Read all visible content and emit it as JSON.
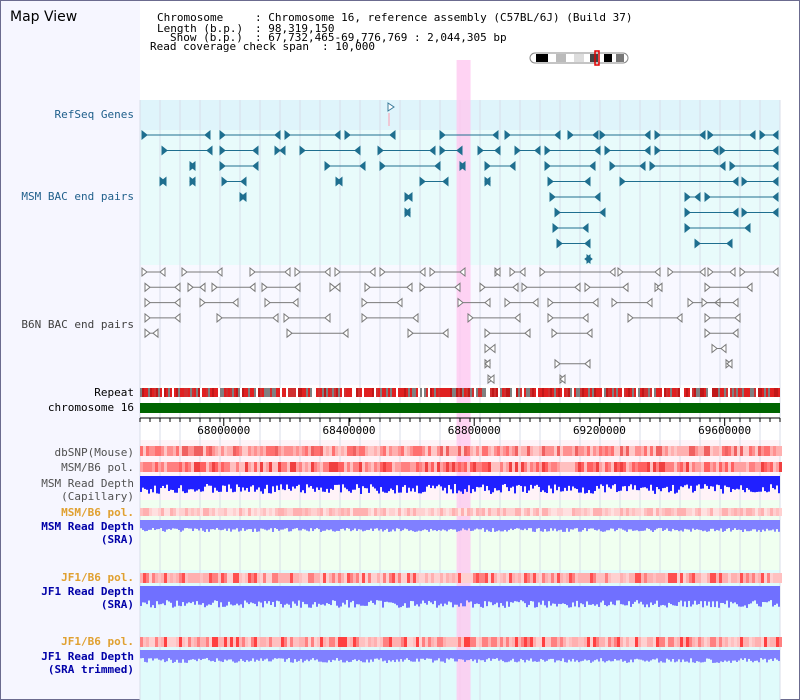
{
  "title": "Map View",
  "info": {
    "chromosome_key": "Chromosome",
    "chromosome_val": ": Chromosome 16, reference assembly (C57BL/6J) (Build 37)",
    "length_key": "Length (b.p.)",
    "length_val": ": 98,319,150",
    "show_key": "Show (b.p.)",
    "show_val": ": 67,732,465-69,776,769 : 2,044,305 bp",
    "span_key": "Read coverage check span",
    "span_val": ": 10,000"
  },
  "tracks": {
    "refseq": "RefSeq Genes",
    "msm_bac": "MSM BAC end pairs",
    "b6n_bac": "B6N BAC end pairs",
    "repeat": "Repeat",
    "chromosome": "chromosome 16",
    "dbsnp": "dbSNP(Mouse)",
    "msm_pol": "MSM/B6 pol.",
    "msm_depth_cap_1": "MSM Read Depth",
    "msm_depth_cap_2": "(Capillary)",
    "msm_pol_2": "MSM/B6 pol.",
    "msm_depth_sra_1": "MSM Read Depth",
    "msm_depth_sra_2": "(SRA)",
    "jf1_pol": "JF1/B6 pol.",
    "jf1_depth_sra_1": "JF1 Read Depth",
    "jf1_depth_sra_2": "(SRA)",
    "jf1_pol_2": "JF1/B6 pol.",
    "jf1_depth_trim_1": "JF1 Read Depth",
    "jf1_depth_trim_2": "(SRA trimmed)"
  },
  "ruler": {
    "ticks": [
      {
        "label": "68000000",
        "value": 68000000
      },
      {
        "label": "68400000",
        "value": 68400000
      },
      {
        "label": "68800000",
        "value": 68800000
      },
      {
        "label": "69200000",
        "value": 69200000
      },
      {
        "label": "69600000",
        "value": 69600000
      }
    ],
    "range_start": 67732465,
    "range_end": 69776769,
    "highlight_start": 68750000,
    "highlight_end": 68790000
  },
  "colors": {
    "refseq_bg": "#dff4fb",
    "msm_bg": "#e8fbfb",
    "b6n_bg": "#f8f8ff",
    "teal_feature": "#1f6f8f",
    "gray_feature": "#7a7a7a",
    "chromosome": "#006400",
    "highlight": "#ffc8f0",
    "depth_blue": "#2020ff",
    "depth_light": "#8080ff"
  }
}
